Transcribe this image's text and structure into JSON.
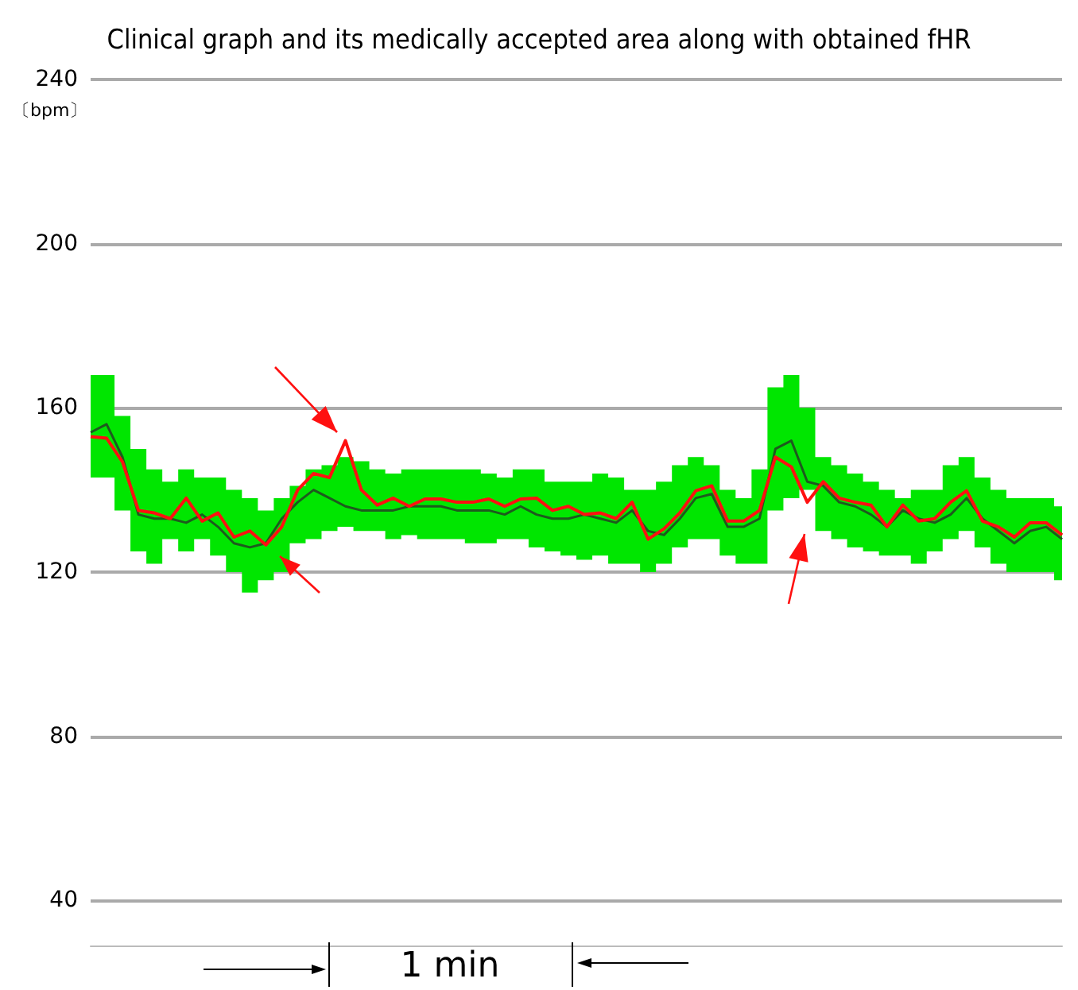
{
  "chart_data": {
    "type": "line",
    "title": "Clinical graph and its medically accepted area along with obtained fHR",
    "ylabel": "〔bpm〕",
    "annotations": [
      "1 min"
    ],
    "categories": [
      null,
      null,
      null,
      null,
      null,
      null,
      null,
      null,
      null,
      null,
      null,
      null,
      null,
      null,
      null,
      null,
      null,
      null,
      null,
      null,
      null,
      null,
      null,
      null,
      null,
      null,
      null,
      null,
      null,
      null,
      null,
      null,
      null,
      null,
      null,
      null,
      null,
      null,
      null,
      null,
      null,
      null,
      null,
      null,
      null,
      null,
      null,
      null,
      null,
      null,
      null,
      null,
      null,
      null,
      null,
      null,
      null,
      null,
      null,
      null,
      null,
      null
    ],
    "ylim": [
      29,
      240
    ],
    "yticks": [
      40,
      80,
      120,
      160,
      200,
      240
    ],
    "grid": "y",
    "marker": "none",
    "line_style": "solid",
    "series": [
      {
        "color": "#1e5a1e",
        "values": [
          154,
          156,
          148,
          134,
          133,
          133,
          132,
          134,
          131,
          127,
          126,
          127,
          133,
          137,
          140,
          138,
          136,
          135,
          135,
          135,
          136,
          136,
          136,
          135,
          135,
          135,
          134,
          136,
          134,
          133,
          133,
          134,
          133,
          132,
          135,
          130,
          129,
          133,
          138,
          139,
          131,
          131,
          133,
          150,
          152,
          142,
          141,
          137,
          136,
          134,
          131,
          135,
          133,
          132,
          134,
          138,
          133,
          130,
          127,
          130,
          131,
          128
        ]
      },
      {
        "color": "#ff1010",
        "values": [
          153,
          152.6,
          146.8,
          135,
          134.4,
          133,
          138,
          132.4,
          134.4,
          128.5,
          130,
          126.6,
          131,
          140,
          144,
          143,
          152,
          140,
          136.3,
          138,
          136,
          137.8,
          137.8,
          137,
          137,
          137.8,
          136,
          137.8,
          138,
          135,
          136,
          134,
          134.4,
          133,
          137,
          128,
          130.5,
          134.4,
          139.8,
          141,
          132.4,
          132.4,
          135,
          148,
          145.6,
          137,
          142,
          138,
          137,
          136.3,
          131,
          136.3,
          132.4,
          133,
          137,
          139.8,
          132.4,
          131,
          128.5,
          132,
          132,
          129
        ],
        "lower": [
          143,
          143,
          135,
          125,
          122,
          128,
          125,
          128,
          124,
          120,
          115,
          118,
          120,
          127,
          128,
          130,
          131,
          130,
          130,
          128,
          129,
          128,
          128,
          128,
          127,
          127,
          128,
          128,
          126,
          125,
          124,
          123,
          124,
          122,
          122,
          120,
          122,
          126,
          128,
          128,
          124,
          122,
          122,
          135,
          138,
          140,
          130,
          128,
          126,
          125,
          124,
          124,
          122,
          125,
          128,
          130,
          126,
          122,
          120,
          120,
          120,
          118
        ],
        "upper": [
          168,
          168,
          158,
          150,
          145,
          142,
          145,
          143,
          143,
          140,
          138,
          135,
          138,
          141,
          145,
          146,
          148,
          147,
          145,
          144,
          145,
          145,
          145,
          145,
          145,
          144,
          143,
          145,
          145,
          142,
          142,
          142,
          144,
          143,
          140,
          140,
          142,
          146,
          148,
          146,
          140,
          138,
          145,
          165,
          168,
          160,
          148,
          146,
          144,
          142,
          140,
          138,
          140,
          140,
          146,
          148,
          143,
          140,
          138,
          138,
          138,
          136
        ]
      }
    ]
  }
}
